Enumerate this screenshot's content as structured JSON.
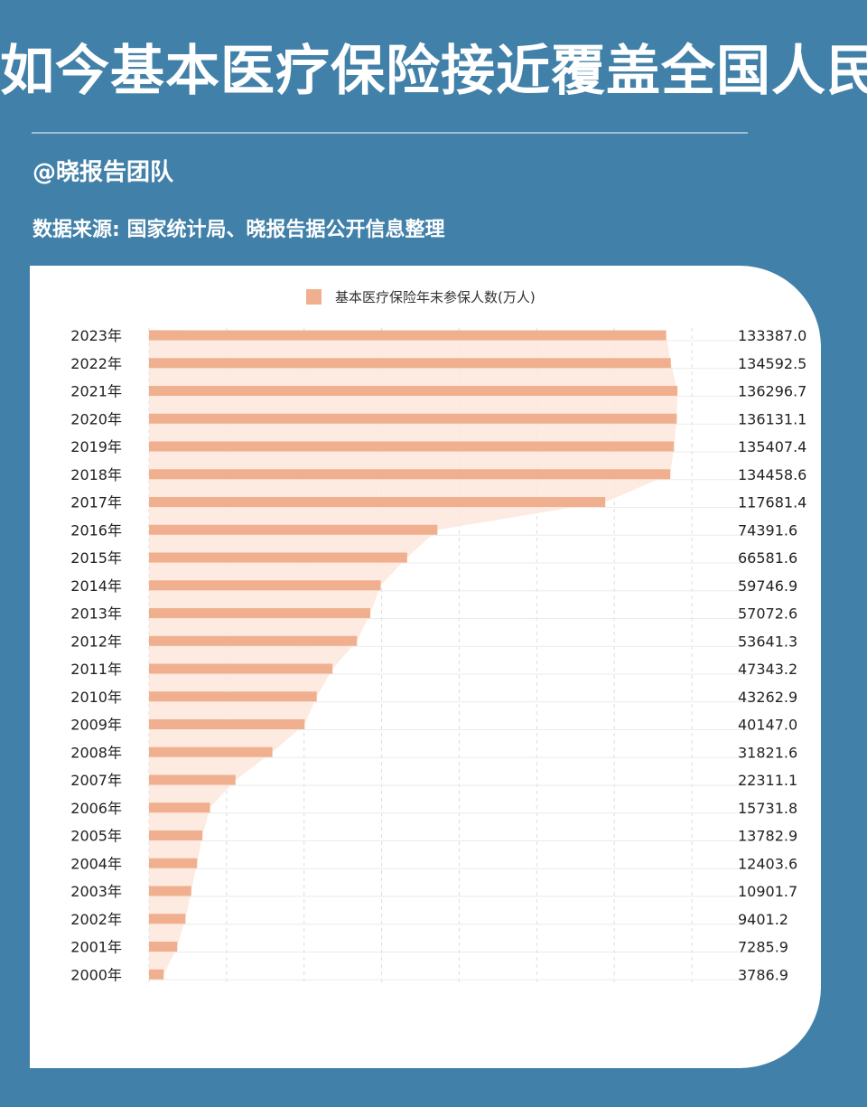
{
  "header": {
    "title": "如今基本医疗保险接近覆盖全国人民",
    "author": "@晓报告团队",
    "source": "数据来源: 国家统计局、晓报告据公开信息整理"
  },
  "colors": {
    "background": "#4180a8",
    "bar": "#f0b08f",
    "area": "#fde6da"
  },
  "chart_data": {
    "type": "bar",
    "orientation": "horizontal",
    "legend": {
      "label": "基本医疗保险年末参保人数(万人)",
      "placement": "top-center"
    },
    "categories": [
      "2023年",
      "2022年",
      "2021年",
      "2020年",
      "2019年",
      "2018年",
      "2017年",
      "2016年",
      "2015年",
      "2014年",
      "2013年",
      "2012年",
      "2011年",
      "2010年",
      "2009年",
      "2008年",
      "2007年",
      "2006年",
      "2005年",
      "2004年",
      "2003年",
      "2002年",
      "2001年",
      "2000年"
    ],
    "values": [
      133387.0,
      134592.5,
      136296.7,
      136131.1,
      135407.4,
      134458.6,
      117681.4,
      74391.6,
      66581.6,
      59746.9,
      57072.6,
      53641.3,
      47343.2,
      43262.9,
      40147.0,
      31821.6,
      22311.1,
      15731.8,
      13782.9,
      12403.6,
      10901.7,
      9401.2,
      7285.9,
      3786.9
    ],
    "value_labels": [
      "133387.0",
      "134592.5",
      "136296.7",
      "136131.1",
      "135407.4",
      "134458.6",
      "117681.4",
      "74391.6",
      "66581.6",
      "59746.9",
      "57072.6",
      "53641.3",
      "47343.2",
      "43262.9",
      "40147.0",
      "31821.6",
      "22311.1",
      "15731.8",
      "13782.9",
      "12403.6",
      "10901.7",
      "9401.2",
      "7285.9",
      "3786.9"
    ],
    "xlim": [
      0,
      140000
    ],
    "grid": true
  }
}
